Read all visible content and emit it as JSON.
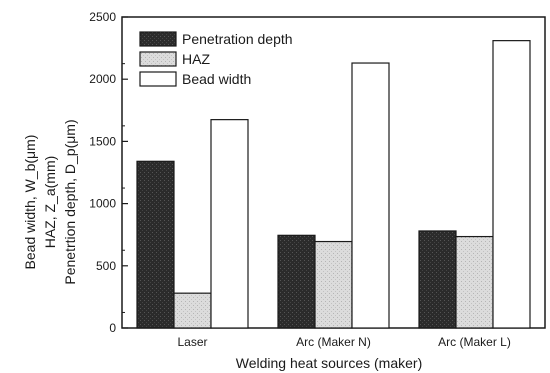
{
  "chart_data": {
    "type": "bar",
    "categories": [
      "Laser",
      "Arc (Maker N)",
      "Arc (Maker L)"
    ],
    "series": [
      {
        "name": "Penetration depth",
        "values": [
          1340,
          745,
          780
        ],
        "fill": "#2b2b2b"
      },
      {
        "name": "HAZ",
        "values": [
          280,
          695,
          735
        ],
        "fill": "#d4d4d4"
      },
      {
        "name": "Bead width",
        "values": [
          1675,
          2130,
          2310
        ],
        "fill": "#ffffff"
      }
    ],
    "xlabel": "Welding heat sources (maker)",
    "ylabel_lines": [
      "Bead width, W_b(μm)",
      "HAZ, Z_a(mm)",
      "Penetrtion depth, D_p(μm)"
    ],
    "ylim": [
      0,
      2500
    ],
    "yticks": [
      0,
      500,
      1000,
      1500,
      2000,
      2500
    ],
    "legend_position": "top-left",
    "grid": false
  }
}
